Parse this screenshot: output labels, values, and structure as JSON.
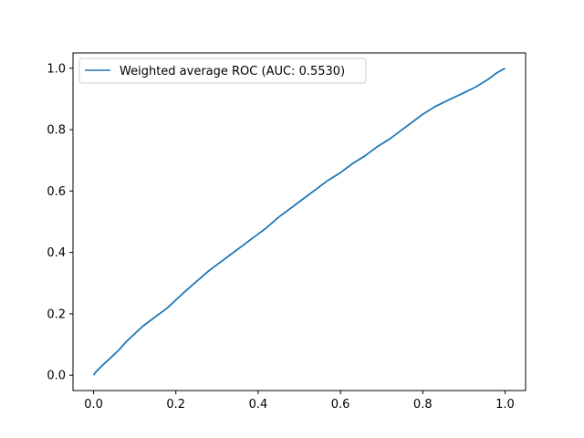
{
  "chart_data": {
    "type": "line",
    "title": "",
    "xlabel": "",
    "ylabel": "",
    "xlim": [
      -0.05,
      1.05
    ],
    "ylim": [
      -0.05,
      1.05
    ],
    "x_ticks": [
      {
        "value": 0.0,
        "label": "0.0"
      },
      {
        "value": 0.2,
        "label": "0.2"
      },
      {
        "value": 0.4,
        "label": "0.4"
      },
      {
        "value": 0.6,
        "label": "0.6"
      },
      {
        "value": 0.8,
        "label": "0.8"
      },
      {
        "value": 1.0,
        "label": "1.0"
      }
    ],
    "y_ticks": [
      {
        "value": 0.0,
        "label": "0.0"
      },
      {
        "value": 0.2,
        "label": "0.2"
      },
      {
        "value": 0.4,
        "label": "0.4"
      },
      {
        "value": 0.6,
        "label": "0.6"
      },
      {
        "value": 0.8,
        "label": "0.8"
      },
      {
        "value": 1.0,
        "label": "1.0"
      }
    ],
    "grid": false,
    "legend_position": "top-left",
    "series": [
      {
        "name": "Weighted average ROC (AUC: 0.5530)",
        "color": "#1f77b4",
        "x": [
          0.0,
          0.005,
          0.02,
          0.04,
          0.06,
          0.08,
          0.1,
          0.12,
          0.15,
          0.18,
          0.2,
          0.22,
          0.25,
          0.28,
          0.3,
          0.33,
          0.36,
          0.39,
          0.42,
          0.45,
          0.48,
          0.51,
          0.54,
          0.57,
          0.6,
          0.63,
          0.66,
          0.69,
          0.72,
          0.75,
          0.78,
          0.8,
          0.83,
          0.86,
          0.9,
          0.93,
          0.96,
          0.98,
          1.0
        ],
        "y": [
          0.0,
          0.01,
          0.03,
          0.055,
          0.08,
          0.11,
          0.135,
          0.16,
          0.19,
          0.22,
          0.245,
          0.27,
          0.305,
          0.34,
          0.36,
          0.39,
          0.42,
          0.45,
          0.48,
          0.515,
          0.545,
          0.575,
          0.605,
          0.635,
          0.66,
          0.69,
          0.715,
          0.745,
          0.77,
          0.8,
          0.83,
          0.85,
          0.875,
          0.895,
          0.92,
          0.94,
          0.965,
          0.985,
          1.0
        ]
      }
    ]
  }
}
